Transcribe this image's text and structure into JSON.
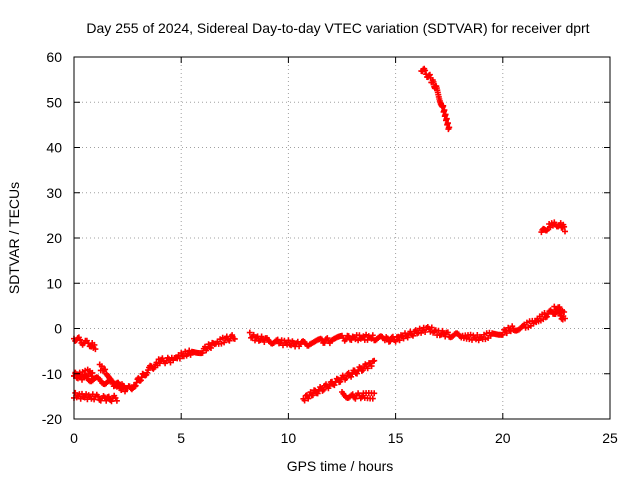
{
  "chart_data": {
    "type": "scatter",
    "title": "Day 255 of 2024, Sidereal Day-to-day VTEC variation (SDTVAR) for receiver dprt",
    "xlabel": "GPS time / hours",
    "ylabel": "SDTVAR / TECUs",
    "xlim": [
      0,
      25
    ],
    "ylim": [
      -20,
      60
    ],
    "xticks": [
      "0",
      "5",
      "10",
      "15",
      "20",
      "25"
    ],
    "yticks": [
      "-20",
      "-10",
      "0",
      "10",
      "20",
      "30",
      "40",
      "50",
      "60"
    ],
    "grid": true,
    "series": [
      {
        "name": "SDTVAR",
        "color": "#ff0000",
        "marker": "plus",
        "segments": [
          [
            [
              0.0,
              -2.0
            ],
            [
              0.4,
              -3.0
            ],
            [
              0.8,
              -3.5
            ],
            [
              1.0,
              -4.2
            ]
          ],
          [
            [
              0.0,
              -10.0
            ],
            [
              0.4,
              -10.2
            ],
            [
              0.7,
              -9.5
            ],
            [
              0.9,
              -10.6
            ]
          ],
          [
            [
              0.0,
              -10.5
            ],
            [
              0.5,
              -10.8
            ],
            [
              1.0,
              -11.3
            ],
            [
              1.5,
              -11.8
            ],
            [
              2.0,
              -12.3
            ],
            [
              2.3,
              -12.8
            ]
          ],
          [
            [
              1.2,
              -8.5
            ],
            [
              1.5,
              -9.5
            ],
            [
              1.7,
              -11.0
            ]
          ],
          [
            [
              0.0,
              -14.8
            ],
            [
              0.5,
              -15.0
            ],
            [
              1.0,
              -15.2
            ],
            [
              1.5,
              -15.6
            ],
            [
              2.0,
              -15.4
            ]
          ],
          [
            [
              1.8,
              -12.0
            ],
            [
              2.2,
              -13.0
            ],
            [
              2.5,
              -13.5
            ],
            [
              2.8,
              -12.5
            ],
            [
              3.0,
              -11.5
            ],
            [
              3.2,
              -10.5
            ],
            [
              3.5,
              -9.0
            ],
            [
              3.8,
              -8.0
            ],
            [
              4.0,
              -7.2
            ],
            [
              4.5,
              -7.0
            ],
            [
              5.0,
              -6.0
            ],
            [
              5.5,
              -5.2
            ],
            [
              6.0,
              -4.8
            ],
            [
              6.5,
              -3.5
            ],
            [
              7.0,
              -2.5
            ],
            [
              7.5,
              -1.8
            ]
          ],
          [
            [
              8.2,
              -1.5
            ],
            [
              8.5,
              -2.2
            ],
            [
              9.0,
              -2.5
            ],
            [
              9.5,
              -3.0
            ],
            [
              10.0,
              -3.2
            ],
            [
              10.5,
              -3.5
            ],
            [
              11.0,
              -3.2
            ],
            [
              11.5,
              -2.8
            ],
            [
              12.0,
              -2.6
            ],
            [
              12.5,
              -2.2
            ],
            [
              13.0,
              -2.0
            ],
            [
              13.5,
              -2.0
            ],
            [
              14.0,
              -2.0
            ],
            [
              14.5,
              -2.5
            ],
            [
              15.0,
              -2.3
            ],
            [
              15.5,
              -1.5
            ],
            [
              16.0,
              -0.8
            ],
            [
              16.5,
              0.0
            ],
            [
              17.0,
              -1.0
            ],
            [
              17.5,
              -1.3
            ],
            [
              18.0,
              -1.8
            ],
            [
              18.5,
              -1.9
            ],
            [
              19.0,
              -2.1
            ],
            [
              19.5,
              -1.2
            ],
            [
              20.0,
              -0.8
            ],
            [
              20.5,
              0.0
            ],
            [
              21.0,
              0.5
            ],
            [
              21.5,
              1.5
            ],
            [
              22.0,
              3.0
            ],
            [
              22.4,
              3.8
            ],
            [
              22.8,
              2.5
            ]
          ],
          [
            [
              22.4,
              4.8
            ],
            [
              22.7,
              4.0
            ],
            [
              22.9,
              2.8
            ]
          ],
          [
            [
              10.7,
              -15.5
            ],
            [
              11.2,
              -14.2
            ],
            [
              11.7,
              -13.0
            ],
            [
              12.2,
              -11.8
            ],
            [
              12.7,
              -10.6
            ],
            [
              13.2,
              -9.4
            ],
            [
              13.7,
              -8.2
            ],
            [
              14.0,
              -7.4
            ]
          ],
          [
            [
              12.5,
              -14.5
            ],
            [
              13.0,
              -15.0
            ],
            [
              13.5,
              -14.8
            ],
            [
              14.0,
              -14.9
            ]
          ],
          [
            [
              16.2,
              57.5
            ],
            [
              16.6,
              55.5
            ],
            [
              16.9,
              53.0
            ],
            [
              17.2,
              49.0
            ],
            [
              17.5,
              44.0
            ]
          ],
          [
            [
              21.8,
              21.0
            ],
            [
              22.1,
              22.5
            ],
            [
              22.4,
              23.2
            ],
            [
              22.7,
              23.0
            ],
            [
              22.9,
              22.0
            ]
          ]
        ]
      }
    ]
  }
}
